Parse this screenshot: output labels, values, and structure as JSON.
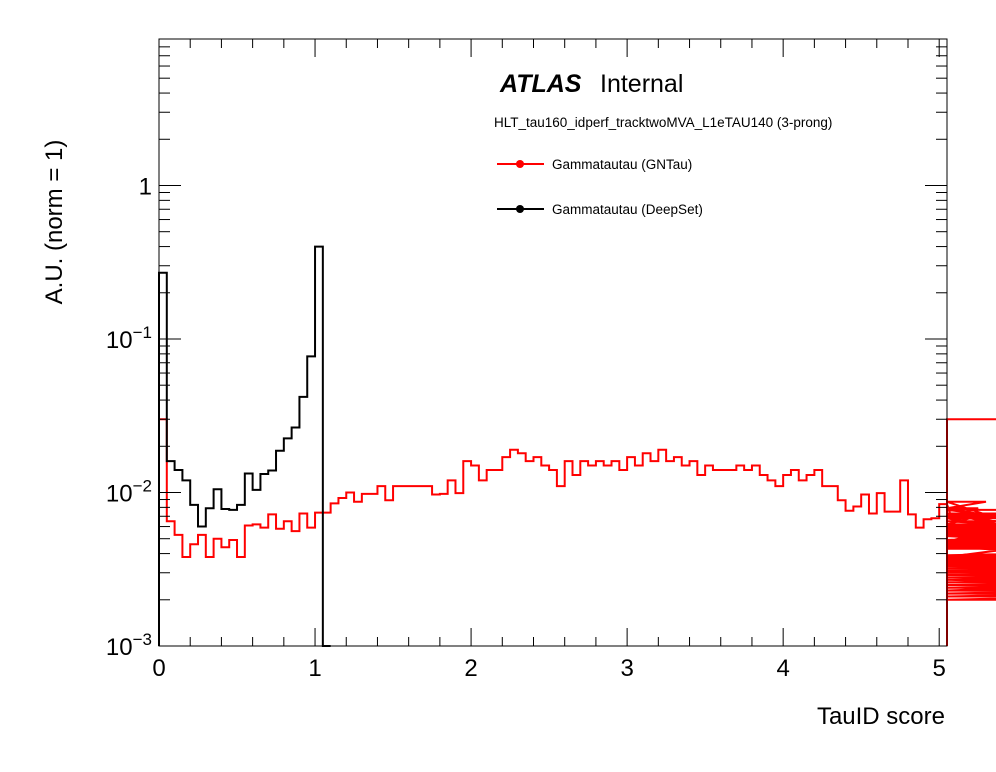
{
  "chart_data": {
    "type": "histogram-step",
    "xlabel": "TauID score",
    "ylabel": "A.U. (norm = 1)",
    "xlim": [
      0,
      5.05
    ],
    "ylim": [
      0.001,
      9
    ],
    "yscale": "log",
    "grid": false,
    "legend_position": "top-right",
    "x_ticks": [
      {
        "value": 0,
        "label": "0"
      },
      {
        "value": 1,
        "label": "1"
      },
      {
        "value": 2,
        "label": "2"
      },
      {
        "value": 3,
        "label": "3"
      },
      {
        "value": 4,
        "label": "4"
      },
      {
        "value": 5,
        "label": "5"
      }
    ],
    "y_ticks": [
      {
        "value": 0.001,
        "base": "10",
        "exp": "−3"
      },
      {
        "value": 0.01,
        "base": "10",
        "exp": "−2"
      },
      {
        "value": 0.1,
        "base": "10",
        "exp": "−1"
      },
      {
        "value": 1,
        "base": "1",
        "exp": ""
      }
    ],
    "bin_width": 0.05,
    "series": [
      {
        "name": "Gammatautau (GNTau)",
        "color": "#ff0000",
        "values": [
          0.03,
          0.0065,
          0.0053,
          0.0038,
          0.0046,
          0.0053,
          0.0038,
          0.005,
          0.0044,
          0.0049,
          0.0038,
          0.0061,
          0.0062,
          0.0059,
          0.0072,
          0.0058,
          0.0065,
          0.0056,
          0.0073,
          0.0059,
          0.0074,
          0.0074,
          0.0085,
          0.0092,
          0.01,
          0.0087,
          0.0098,
          0.0098,
          0.011,
          0.0089,
          0.011,
          0.011,
          0.011,
          0.011,
          0.011,
          0.0097,
          0.0098,
          0.012,
          0.0099,
          0.016,
          0.015,
          0.012,
          0.014,
          0.014,
          0.017,
          0.019,
          0.018,
          0.016,
          0.017,
          0.015,
          0.014,
          0.011,
          0.016,
          0.013,
          0.016,
          0.015,
          0.016,
          0.015,
          0.016,
          0.014,
          0.017,
          0.015,
          0.018,
          0.016,
          0.019,
          0.016,
          0.017,
          0.015,
          0.016,
          0.013,
          0.015,
          0.014,
          0.014,
          0.014,
          0.015,
          0.014,
          0.015,
          0.013,
          0.012,
          0.011,
          0.013,
          0.014,
          0.012,
          0.013,
          0.014,
          0.011,
          0.011,
          0.0089,
          0.0076,
          0.0081,
          0.0097,
          0.0073,
          0.0099,
          0.0075,
          0.0075,
          0.012,
          0.0072,
          0.0059,
          0.0067,
          0.0068,
          0.0084,
          0.0084,
          0.0059,
          0.0062,
          0.0068,
          0.0079,
          0.0087,
          0.0069,
          0.0058,
          0.0072,
          0.0068,
          0.0052,
          0.0052,
          0.0053,
          0.0073,
          0.0052,
          0.0053,
          0.0048,
          0.0077,
          0.006,
          0.006,
          0.0057,
          0.0046,
          0.0065,
          0.0056,
          0.0055,
          0.0077,
          0.0054,
          0.0071,
          0.0048,
          0.0071,
          0.0047,
          0.0055,
          0.0043,
          0.0046,
          0.0043,
          0.0049,
          0.0062,
          0.0045,
          0.0058,
          0.0071,
          0.0073,
          0.0061,
          0.0057,
          0.0059,
          0.0044,
          0.0052,
          0.0039,
          0.0044,
          0.0034,
          0.0036,
          0.0037,
          0.0037,
          0.0036,
          0.0034,
          0.003,
          0.003,
          0.0031,
          0.0032,
          0.0034,
          0.003,
          0.003,
          0.0031,
          0.0029,
          0.003,
          0.0028,
          0.0031,
          0.0027,
          0.0024,
          0.0023,
          0.0023,
          0.0028,
          0.0023,
          0.0023,
          0.0031,
          0.0027,
          0.0021,
          0.0021,
          0.0024,
          0.0027,
          0.0024,
          0.0022,
          0.002,
          0.0025,
          0.0023,
          0.0022,
          0.0021,
          0.0021,
          0.0024,
          0.0025,
          0.0025,
          0.0026,
          0.0024,
          0.0024,
          0.0021,
          0.0022,
          0.0021,
          0.0027,
          0.0022,
          0.0023,
          0.0026,
          0.0022,
          0.002,
          0.0023,
          0.0025,
          0.0021,
          0.0026,
          0.0022,
          0.0022,
          0.0022,
          0.0023,
          0.002,
          0.0023,
          0.0022,
          0.0021,
          0.0024,
          0.0024,
          0.0021,
          0.0023,
          0.0022,
          0.0028,
          0.0031,
          0.0033,
          0.0038,
          0.003,
          0.0033,
          0.0036,
          0.0035,
          0.0036,
          0.0037,
          0.0037,
          0.0036,
          0.0036,
          0.0038,
          0.0038,
          0.0038,
          0.0038,
          0.0038,
          0.03
        ]
      },
      {
        "name": "Gammatautau (DeepSet)",
        "color": "#000000",
        "values": [
          0.27,
          0.016,
          0.014,
          0.012,
          0.0083,
          0.006,
          0.0079,
          0.0105,
          0.0078,
          0.0077,
          0.0083,
          0.0133,
          0.0104,
          0.0132,
          0.0139,
          0.0187,
          0.0225,
          0.0265,
          0.042,
          0.077,
          0.4,
          0.0001
        ]
      }
    ]
  },
  "branding": {
    "atlas": "ATLAS",
    "status": "Internal"
  },
  "trigger_label": "HLT_tau160_idperf_tracktwoMVA_L1eTAU140 (3-prong)"
}
